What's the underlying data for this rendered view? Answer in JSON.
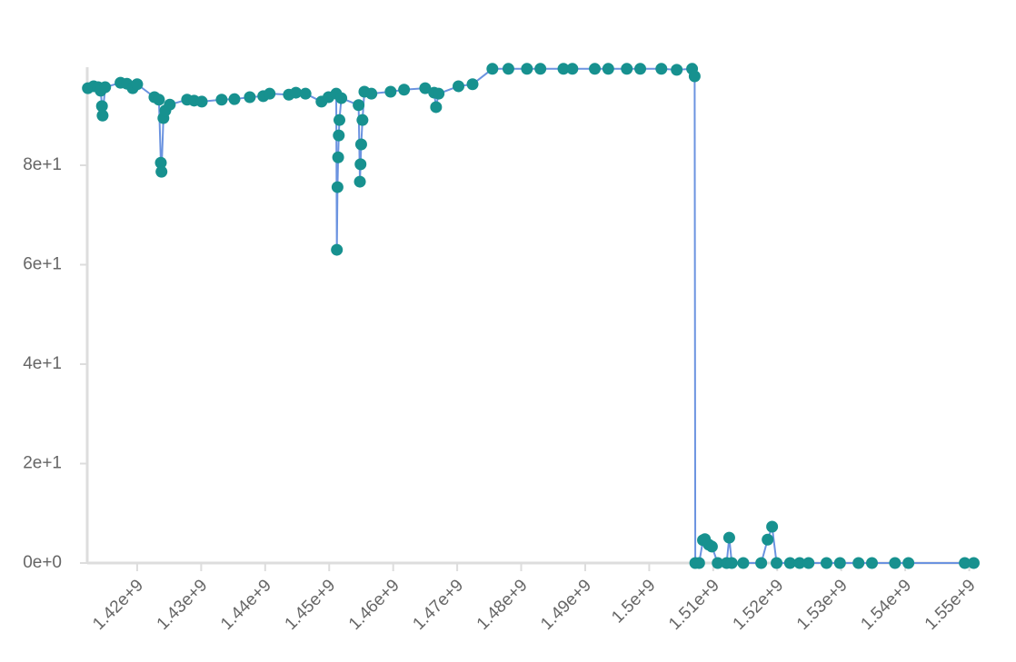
{
  "chart_data": {
    "type": "line",
    "x": [
      1412300000,
      1413200000,
      1413900000,
      1414300000,
      1414500000,
      1414600000,
      1415000000,
      1417400000,
      1418400000,
      1419300000,
      1420000000,
      1422700000,
      1423400000,
      1423700000,
      1423800000,
      1424100000,
      1424400000,
      1425100000,
      1427800000,
      1428900000,
      1430100000,
      1433200000,
      1435200000,
      1437600000,
      1439700000,
      1440700000,
      1443700000,
      1444800000,
      1446300000,
      1448800000,
      1449900000,
      1451100000,
      1451200000,
      1451300000,
      1451400000,
      1451500000,
      1451600000,
      1451900000,
      1454600000,
      1454800000,
      1454900000,
      1455000000,
      1455200000,
      1455500000,
      1456600000,
      1459600000,
      1461700000,
      1465000000,
      1466400000,
      1466700000,
      1467100000,
      1470200000,
      1472400000,
      1475500000,
      1478000000,
      1480900000,
      1483000000,
      1486600000,
      1488000000,
      1491500000,
      1493600000,
      1496500000,
      1498600000,
      1501900000,
      1504300000,
      1506700000,
      1507100000,
      1507200000,
      1507800000,
      1508400000,
      1508700000,
      1509300000,
      1509800000,
      1510700000,
      1512100000,
      1512500000,
      1512900000,
      1514700000,
      1517500000,
      1518500000,
      1519200000,
      1519900000,
      1522000000,
      1523500000,
      1524900000,
      1527700000,
      1529800000,
      1532700000,
      1534800000,
      1538400000,
      1540500000,
      1549300000,
      1550700000
    ],
    "values": [
      95.5,
      95.9,
      95.7,
      95.0,
      91.9,
      90.0,
      95.7,
      96.6,
      96.4,
      95.5,
      96.3,
      93.7,
      93.2,
      80.5,
      78.7,
      89.5,
      91.0,
      92.2,
      93.2,
      93.0,
      92.8,
      93.2,
      93.3,
      93.7,
      93.9,
      94.4,
      94.2,
      94.6,
      94.4,
      92.8,
      93.7,
      94.4,
      63.0,
      75.6,
      81.6,
      86.0,
      89.1,
      93.5,
      92.1,
      76.7,
      80.2,
      84.2,
      89.1,
      94.8,
      94.4,
      94.8,
      95.2,
      95.5,
      94.6,
      91.7,
      94.4,
      95.9,
      96.3,
      99.4,
      99.4,
      99.4,
      99.4,
      99.4,
      99.4,
      99.4,
      99.4,
      99.4,
      99.4,
      99.4,
      99.2,
      99.4,
      97.9,
      0,
      0,
      4.6,
      4.8,
      3.7,
      3.3,
      0,
      0,
      5.1,
      0,
      0,
      0,
      4.7,
      7.3,
      0,
      0,
      0,
      0,
      0,
      0,
      0,
      0,
      0,
      0,
      0,
      0
    ],
    "color": "#6b93e0",
    "marker_color": "#17918f",
    "xlim": [
      1412200000,
      1551200000
    ],
    "ylim": [
      0,
      100
    ],
    "xticks": [
      {
        "value": 1420000000,
        "label": "1.42e+9"
      },
      {
        "value": 1430000000,
        "label": "1.43e+9"
      },
      {
        "value": 1440000000,
        "label": "1.44e+9"
      },
      {
        "value": 1450000000,
        "label": "1.45e+9"
      },
      {
        "value": 1460000000,
        "label": "1.46e+9"
      },
      {
        "value": 1470000000,
        "label": "1.47e+9"
      },
      {
        "value": 1480000000,
        "label": "1.48e+9"
      },
      {
        "value": 1490000000,
        "label": "1.49e+9"
      },
      {
        "value": 1500000000,
        "label": "1.5e+9"
      },
      {
        "value": 1510000000,
        "label": "1.51e+9"
      },
      {
        "value": 1520000000,
        "label": "1.52e+9"
      },
      {
        "value": 1530000000,
        "label": "1.53e+9"
      },
      {
        "value": 1540000000,
        "label": "1.54e+9"
      },
      {
        "value": 1550000000,
        "label": "1.55e+9"
      }
    ],
    "yticks": [
      {
        "value": 0,
        "label": "0e+0"
      },
      {
        "value": 20,
        "label": "2e+1"
      },
      {
        "value": 40,
        "label": "4e+1"
      },
      {
        "value": 60,
        "label": "6e+1"
      },
      {
        "value": 80,
        "label": "8e+1"
      }
    ]
  }
}
